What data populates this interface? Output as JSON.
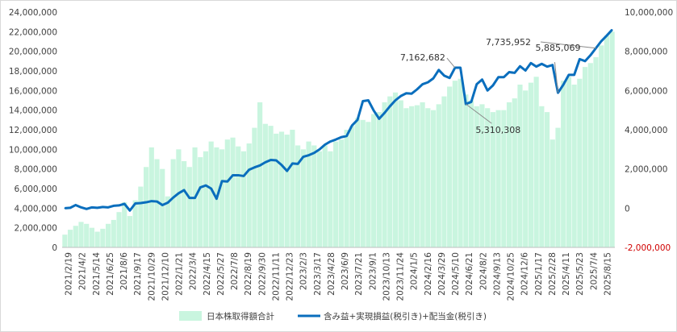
{
  "chart_data": {
    "type": "bar+line",
    "title": "",
    "grid": false,
    "legend_position": "bottom",
    "x_tick_labels": [
      "2021/2/19",
      "2021/4/2",
      "2021/5/14",
      "2021/6/25",
      "2021/8/6",
      "2021/9/17",
      "2021/10/29",
      "2021/12/10",
      "2022/1/21",
      "2022/3/4",
      "2022/4/15",
      "2022/5/27",
      "2022/7/8",
      "2022/8/19",
      "2022/9/30",
      "2022/11/11",
      "2022/12/23",
      "2023/2/3",
      "2023/3/17",
      "2023/4/28",
      "2023/6/9",
      "2023/7/21",
      "2023/9/1",
      "2023/10/13",
      "2023/11/24",
      "2024/1/5",
      "2024/2/16",
      "2024/3/29",
      "2024/5/10",
      "2024/6/21",
      "2024/8/2",
      "2024/9/13",
      "2024/10/25",
      "2024/12/6",
      "2025/1/17",
      "2025/2/28",
      "2025/4/11",
      "2025/5/23",
      "2025/7/4",
      "2025/8/15"
    ],
    "y_left": {
      "ticks": [
        0,
        2000000,
        4000000,
        6000000,
        8000000,
        10000000,
        12000000,
        14000000,
        16000000,
        18000000,
        20000000,
        22000000,
        24000000
      ],
      "tick_labels": [
        "0",
        "2,000,000",
        "4,000,000",
        "6,000,000",
        "8,000,000",
        "10,000,000",
        "12,000,000",
        "14,000,000",
        "16,000,000",
        "18,000,000",
        "20,000,000",
        "22,000,000",
        "24,000,000"
      ],
      "ylim": [
        0,
        24000000
      ]
    },
    "y_right": {
      "ticks": [
        -2000000,
        0,
        2000000,
        4000000,
        6000000,
        8000000,
        10000000
      ],
      "tick_labels": [
        "-2,000,000",
        "0",
        "2,000,000",
        "4,000,000",
        "6,000,000",
        "8,000,000",
        "10,000,000"
      ],
      "ylim": [
        -2000000,
        10000000
      ],
      "negative_color": "#d00000"
    },
    "series": [
      {
        "name": "日本株取得額合計",
        "kind": "bar",
        "axis": "left",
        "color": "#c9f5df",
        "values": [
          1300000,
          1800000,
          2200000,
          2600000,
          2400000,
          2000000,
          1600000,
          1900000,
          2400000,
          2800000,
          3600000,
          4600000,
          3200000,
          4800000,
          6200000,
          8200000,
          10200000,
          9000000,
          8000000,
          5200000,
          9000000,
          10000000,
          8800000,
          8200000,
          10200000,
          9200000,
          9800000,
          10800000,
          10200000,
          10000000,
          11000000,
          11200000,
          10300000,
          9800000,
          10600000,
          12200000,
          14800000,
          12600000,
          12400000,
          11600000,
          11800000,
          11500000,
          12000000,
          10400000,
          10000000,
          10800000,
          10400000,
          9800000,
          10400000,
          9800000,
          10800000,
          11000000,
          12000000,
          12400000,
          13200000,
          13000000,
          12800000,
          13600000,
          13800000,
          14800000,
          15400000,
          15800000,
          15000000,
          14200000,
          14400000,
          14500000,
          14800000,
          14200000,
          14000000,
          14600000,
          15400000,
          16400000,
          17000000,
          17200000,
          15600000,
          15000000,
          14400000,
          14600000,
          14200000,
          13800000,
          14000000,
          14000000,
          14800000,
          15200000,
          16600000,
          16000000,
          16800000,
          17400000,
          14400000,
          13800000,
          11000000,
          12200000,
          17000000,
          17400000,
          16600000,
          17200000,
          18400000,
          18800000,
          19400000,
          20600000,
          21600000,
          22000000
        ]
      },
      {
        "name": "含み益+実現損益(税引き)+配当金(税引き)",
        "kind": "line",
        "axis": "right",
        "color": "#0a6ebd",
        "values": [
          0,
          20000,
          160000,
          40000,
          -40000,
          40000,
          20000,
          60000,
          40000,
          120000,
          140000,
          220000,
          -120000,
          240000,
          260000,
          300000,
          360000,
          340000,
          160000,
          280000,
          540000,
          760000,
          920000,
          520000,
          520000,
          1060000,
          1160000,
          1000000,
          480000,
          1380000,
          1360000,
          1680000,
          1680000,
          1640000,
          1960000,
          2080000,
          2180000,
          2340000,
          2460000,
          2440000,
          2200000,
          1900000,
          2280000,
          2260000,
          2620000,
          2700000,
          2820000,
          3000000,
          3240000,
          3400000,
          3500000,
          3620000,
          3680000,
          4220000,
          4500000,
          5460000,
          5500000,
          4980000,
          4560000,
          4860000,
          5200000,
          5500000,
          5720000,
          5860000,
          5840000,
          6060000,
          6320000,
          6420000,
          6620000,
          7050000,
          6760000,
          6640000,
          7162682,
          7162682,
          5310308,
          5420000,
          6320000,
          6560000,
          6000000,
          6260000,
          6680000,
          6680000,
          6940000,
          6900000,
          7240000,
          7020000,
          7400000,
          7220000,
          7360000,
          7220000,
          7300000,
          5885069,
          6300000,
          6800000,
          6800000,
          7600000,
          7500000,
          7800000,
          8160000,
          8520000,
          8800000,
          9100000
        ]
      }
    ],
    "annotations": [
      {
        "label": "7,162,682",
        "series": 1,
        "value": 7162682
      },
      {
        "label": "5,310,308",
        "series": 1,
        "value": 5310308
      },
      {
        "label": "7,735,952",
        "series": 1,
        "value": 7735952
      },
      {
        "label": "5,885,069",
        "series": 1,
        "value": 5885069
      }
    ]
  }
}
